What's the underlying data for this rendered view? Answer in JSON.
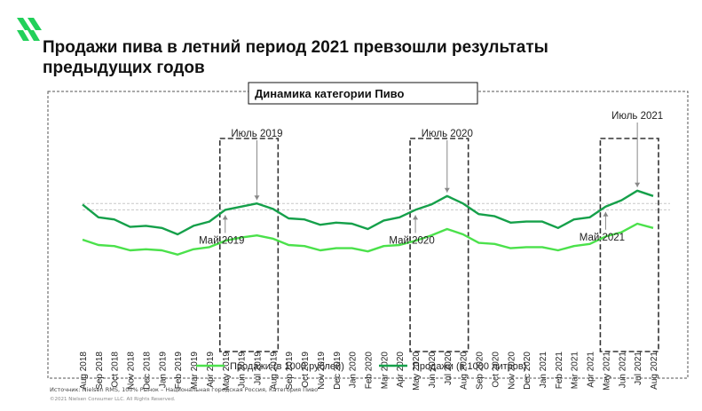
{
  "headline": "Продажи пива в летний период 2021 превзошли результаты предыдущих годов",
  "footer": {
    "source": "Источник: Nielsen RMS, 100%   Рынок – Национальная городская Россия, Категория Пиво",
    "copyright": "©2021 Nielsen Consumer LLC. All Rights Reserved."
  },
  "colors": {
    "rub_series": "#4be14b",
    "liters_series": "#15a04a",
    "logo": "#22d05a"
  },
  "icons": [
    "logo-icon"
  ],
  "chart_data": {
    "type": "line",
    "title": "Динамика категории Пиво",
    "categories": [
      "Aug 2018",
      "Sep 2018",
      "Oct 2018",
      "Nov 2018",
      "Dec 2018",
      "Jan 2019",
      "Feb 2019",
      "Mar 2019",
      "Apr 2019",
      "May 2019",
      "Jun 2019",
      "Jul 2019",
      "Aug 2019",
      "Sep 2019",
      "Oct 2019",
      "Nov 2019",
      "Dec 2019",
      "Jan 2020",
      "Feb 2020",
      "Mar 2020",
      "Apr 2020",
      "May 2020",
      "Jun 2020",
      "Jul 2020",
      "Aug 2020",
      "Sep 2020",
      "Oct 2020",
      "Nov 2020",
      "Dec 2020",
      "Jan 2021",
      "Feb 2021",
      "Mar 2021",
      "Apr 2021",
      "May 2021",
      "Jun 2021",
      "Jul 2021",
      "Aug 2021"
    ],
    "series": [
      {
        "name": "Продажи (в 1000 рублей)",
        "values": [
          60,
          55,
          54,
          50,
          51,
          50,
          46,
          51,
          53,
          59,
          62,
          64,
          61,
          55,
          54,
          50,
          52,
          52,
          49,
          54,
          55,
          59,
          64,
          70,
          65,
          57,
          56,
          52,
          53,
          53,
          50,
          54,
          56,
          63,
          67,
          75,
          71
        ]
      },
      {
        "name": "Продажи (в 1000 литров)",
        "values": [
          93,
          81,
          79,
          72,
          73,
          71,
          65,
          73,
          77,
          88,
          91,
          94,
          89,
          80,
          79,
          74,
          76,
          75,
          70,
          78,
          81,
          88,
          93,
          101,
          94,
          84,
          82,
          76,
          77,
          77,
          71,
          79,
          81,
          91,
          97,
          106,
          101
        ]
      }
    ],
    "reference_lines": [
      94,
      88
    ],
    "annotations": [
      {
        "label": "Май 2019",
        "category": "May 2019"
      },
      {
        "label": "Июль 2019",
        "category": "Jul 2019"
      },
      {
        "label": "Май 2020",
        "category": "May 2020"
      },
      {
        "label": "Июль 2020",
        "category": "Jul 2020"
      },
      {
        "label": "Май 2021",
        "category": "May 2021"
      },
      {
        "label": "Июль 2021",
        "category": "Jul 2021"
      }
    ],
    "highlight_ranges": [
      [
        "May 2019",
        "Aug 2019"
      ],
      [
        "May 2020",
        "Aug 2020"
      ],
      [
        "May 2021",
        "Aug 2021"
      ]
    ],
    "ylim": [
      0,
      130
    ],
    "grid": false,
    "legend_position": "bottom"
  }
}
